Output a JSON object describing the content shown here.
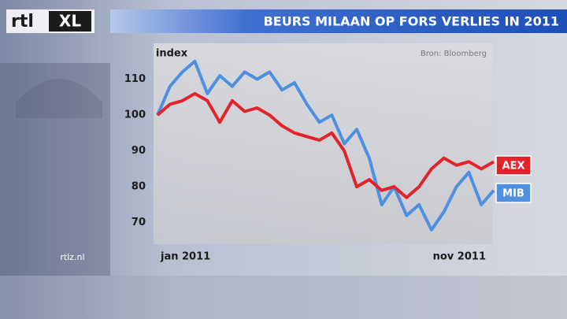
{
  "logo": {
    "left": "rtl",
    "right": "XL"
  },
  "watermark": "rtlz.nl",
  "chart_data": {
    "type": "line",
    "title": "BEURS MILAAN OP FORS VERLIES IN 2011",
    "y_label": "index",
    "source": "Bron: Bloomberg",
    "categories": [
      "jan 2011",
      null,
      null,
      null,
      null,
      null,
      null,
      null,
      null,
      null,
      null,
      null,
      null,
      null,
      null,
      null,
      null,
      null,
      null,
      null,
      null,
      null,
      null,
      null,
      null,
      null,
      null,
      "nov 2011"
    ],
    "series": [
      {
        "name": "AEX",
        "color": "#e3232a",
        "values": [
          100,
          103,
          104,
          106,
          104,
          98,
          104,
          101,
          102,
          100,
          97,
          95,
          94,
          93,
          95,
          90,
          80,
          82,
          79,
          80,
          77,
          80,
          85,
          88,
          86,
          87,
          85,
          87
        ]
      },
      {
        "name": "MIB",
        "color": "#4f8fe0",
        "values": [
          100,
          108,
          112,
          115,
          106,
          111,
          108,
          112,
          110,
          112,
          107,
          109,
          103,
          98,
          100,
          92,
          96,
          88,
          75,
          80,
          72,
          75,
          68,
          73,
          80,
          84,
          75,
          79
        ]
      }
    ],
    "ylim": [
      64,
      120
    ],
    "yticks": [
      70,
      80,
      90,
      100,
      110
    ],
    "grid": false
  }
}
